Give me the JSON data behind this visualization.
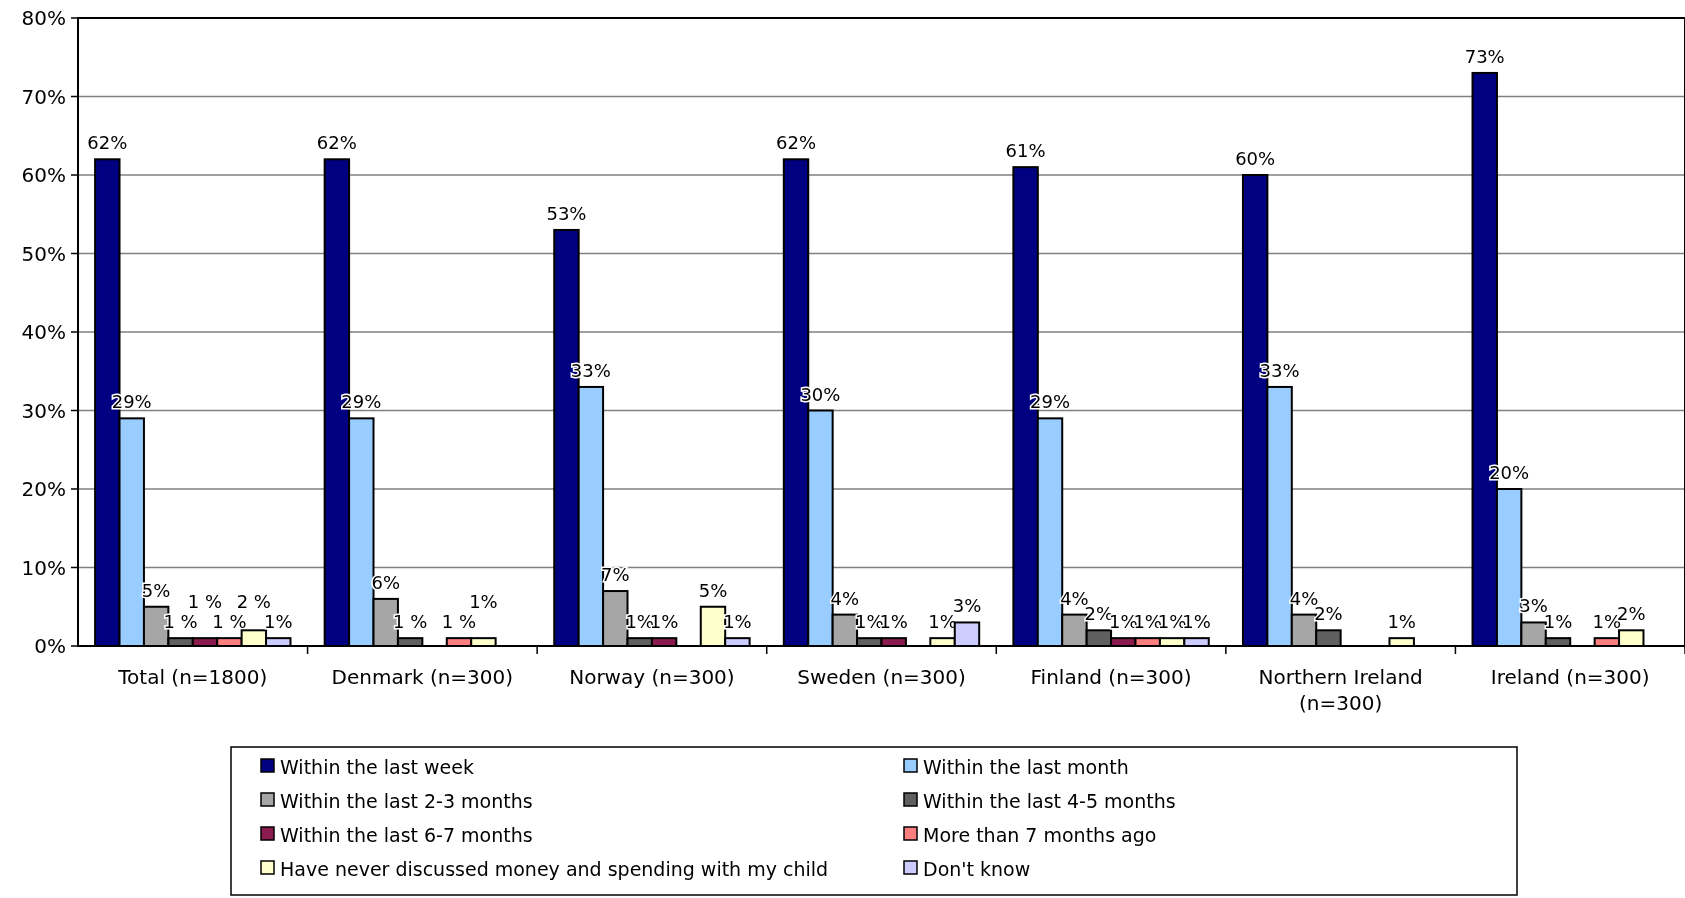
{
  "chart_data": {
    "type": "bar",
    "categories": [
      "Total (n=1800)",
      "Denmark (n=300)",
      "Norway (n=300)",
      "Sweden (n=300)",
      "Finland (n=300)",
      "Northern Ireland (n=300)",
      "Ireland (n=300)"
    ],
    "series": [
      {
        "name": "Within the last week",
        "color": "#000080",
        "values": [
          62,
          62,
          53,
          62,
          61,
          60,
          73
        ],
        "value_labels": [
          "62%",
          "62%",
          "53%",
          "62%",
          "61%",
          "60%",
          "73%"
        ]
      },
      {
        "name": "Within the last month",
        "color": "#99ccff",
        "values": [
          29,
          29,
          33,
          30,
          29,
          33,
          20
        ],
        "value_labels": [
          "29%",
          "29%",
          "33%",
          "30%",
          "29%",
          "33%",
          "20%"
        ]
      },
      {
        "name": "Within the last 2-3 months",
        "color": "#a6a6a6",
        "values": [
          5,
          6,
          7,
          4,
          4,
          4,
          3
        ],
        "value_labels": [
          "5%",
          "6%",
          "7%",
          "4%",
          "4%",
          "4%",
          "3%"
        ]
      },
      {
        "name": "Within the last 4-5 months",
        "color": "#5f5f5f",
        "values": [
          1,
          1,
          1,
          1,
          2,
          2,
          1
        ],
        "value_labels": [
          "1 %",
          "1 %",
          "1%",
          "1%",
          "2%",
          "2%",
          "1%"
        ]
      },
      {
        "name": "Within the last 6-7 months",
        "color": "#8b1a4f",
        "values": [
          1,
          null,
          1,
          1,
          1,
          null,
          null
        ],
        "value_labels": [
          "1 %",
          null,
          "1%",
          "1%",
          "1%",
          null,
          null
        ]
      },
      {
        "name": "More than 7 months ago",
        "color": "#ff7f7f",
        "values": [
          1,
          1,
          null,
          null,
          1,
          null,
          1
        ],
        "value_labels": [
          "1 %",
          "1 %",
          null,
          null,
          "1%",
          null,
          "1%"
        ]
      },
      {
        "name": "Have never discussed money and spending with my child",
        "color": "#ffffcc",
        "values": [
          2,
          1,
          5,
          1,
          1,
          1,
          2
        ],
        "value_labels": [
          "2 %",
          "1%",
          "5%",
          "1%",
          "1%",
          "1%",
          "2%"
        ]
      },
      {
        "name": "Don't know",
        "color": "#ccccff",
        "values": [
          1,
          null,
          1,
          3,
          1,
          null,
          null
        ],
        "value_labels": [
          "1%",
          null,
          "1%",
          "3%",
          "1%",
          null,
          null
        ]
      }
    ],
    "ylim": [
      0,
      80
    ],
    "yticks": [
      {
        "value": 0,
        "label": "0%"
      },
      {
        "value": 10,
        "label": "10%"
      },
      {
        "value": 20,
        "label": "20%"
      },
      {
        "value": 30,
        "label": "30%"
      },
      {
        "value": 40,
        "label": "40%"
      },
      {
        "value": 50,
        "label": "50%"
      },
      {
        "value": 60,
        "label": "60%"
      },
      {
        "value": 70,
        "label": "70%"
      },
      {
        "value": 80,
        "label": "80%"
      }
    ],
    "grid": "y",
    "legend": "bottom"
  }
}
